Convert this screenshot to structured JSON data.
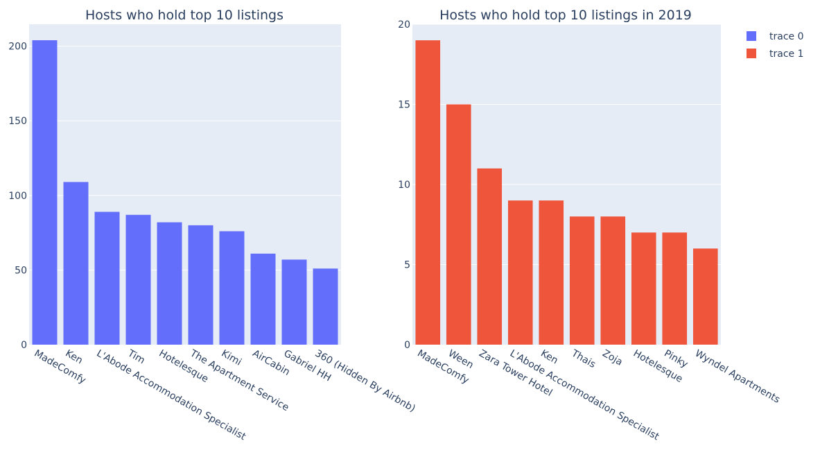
{
  "chart_data": [
    {
      "type": "bar",
      "title": "Hosts who hold top 10 listings",
      "series_name": "trace 0",
      "color": "#636efa",
      "categories": [
        "MadeComfy",
        "Ken",
        "L'Abode Accommodation Specialist",
        "Tim",
        "Hotelesque",
        "The Apartment Service",
        "Kimi",
        "AirCabin",
        "Gabriel HH",
        "360 (Hidden By Airbnb)"
      ],
      "values": [
        204,
        109,
        89,
        87,
        82,
        80,
        76,
        61,
        57,
        51
      ],
      "ylim": [
        0,
        214.7
      ],
      "yticks": [
        0,
        50,
        100,
        150,
        200
      ],
      "grid": true
    },
    {
      "type": "bar",
      "title": "Hosts who hold top 10 listings in 2019",
      "series_name": "trace 1",
      "color": "#ef553b",
      "categories": [
        "MadeComfy",
        "Ween",
        "Zara Tower Hotel",
        "L'Abode Accommodation Specialist",
        "Ken",
        "Thais",
        "Zoja",
        "Hotelesque",
        "Pinky",
        "Wyndel Apartments"
      ],
      "values": [
        19,
        15,
        11,
        9,
        9,
        8,
        8,
        7,
        7,
        6
      ],
      "ylim": [
        0,
        20
      ],
      "yticks": [
        0,
        5,
        10,
        15,
        20
      ],
      "grid": true
    }
  ],
  "legend": {
    "placement": "top-right",
    "items": [
      {
        "name": "trace 0",
        "color": "#636efa"
      },
      {
        "name": "trace 1",
        "color": "#ef553b"
      }
    ]
  },
  "colors": {
    "plot_bg": "#e5ecf6",
    "grid": "#ffffff",
    "text": "#2a3f5f"
  }
}
